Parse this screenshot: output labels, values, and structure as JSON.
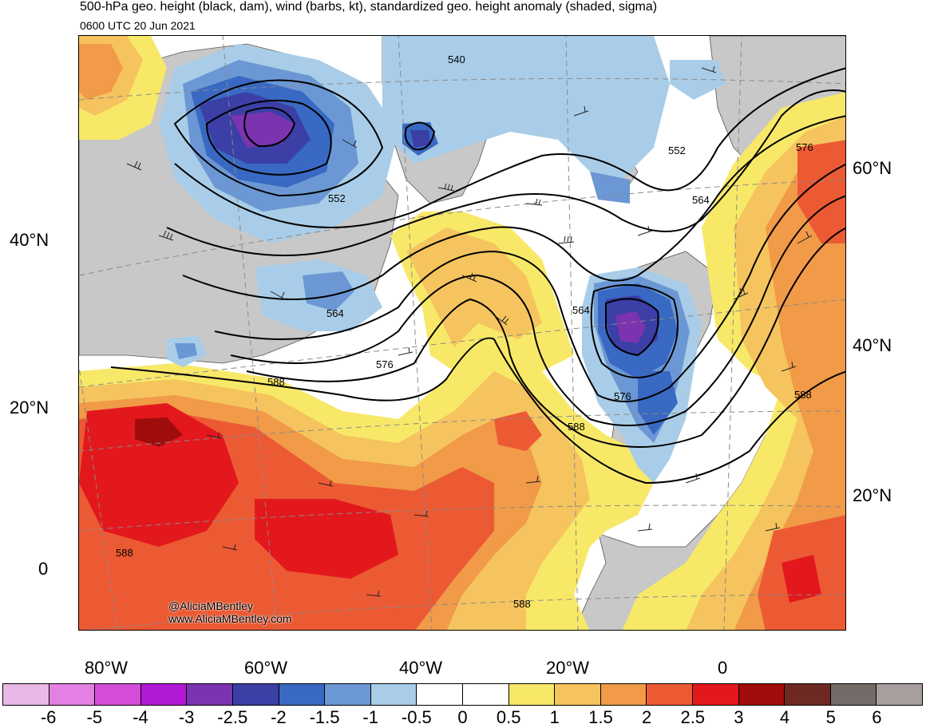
{
  "header": {
    "title": "500-hPa geo. height (black, dam), wind (barbs, kt), standardized geo. height anomaly (shaded, sigma)",
    "valid_time": "0600 UTC 20 Jun 2021"
  },
  "axes": {
    "lat_left": [
      {
        "label": "40°N"
      },
      {
        "label": "20°N"
      },
      {
        "label": "0"
      }
    ],
    "lat_right": [
      {
        "label": "60°N"
      },
      {
        "label": "40°N"
      },
      {
        "label": "20°N"
      }
    ],
    "lon_bottom": [
      {
        "label": "80°W"
      },
      {
        "label": "60°W"
      },
      {
        "label": "40°W"
      },
      {
        "label": "20°W"
      },
      {
        "label": "0"
      }
    ]
  },
  "contour_labels": [
    "540",
    "552",
    "552",
    "564",
    "564",
    "564",
    "576",
    "576",
    "576",
    "588",
    "588",
    "588",
    "588",
    "588"
  ],
  "credit": {
    "handle": "@AliciaMBentley",
    "site": "www.AliciaMBentley.com"
  },
  "colorbar": {
    "colors": [
      "#e9b8e6",
      "#e480e4",
      "#d44cd8",
      "#b01ad4",
      "#7b33b0",
      "#3b3fa6",
      "#3969c2",
      "#6b98d4",
      "#a9cde8",
      "#ffffff",
      "#ffffff",
      "#f8e868",
      "#f5c45e",
      "#f19a48",
      "#ec5a34",
      "#e3181c",
      "#a00c0c",
      "#6e2a22",
      "#746a68",
      "#a89e9e"
    ],
    "ticks": [
      "-6",
      "-5",
      "-4",
      "-3",
      "-2.5",
      "-2",
      "-1.5",
      "-1",
      "-0.5",
      "0",
      "0.5",
      "1",
      "1.5",
      "2",
      "2.5",
      "3",
      "4",
      "5",
      "6"
    ]
  },
  "palette": {
    "land": "#c8c8c8",
    "contour": "#000000",
    "grid": "#888888"
  }
}
